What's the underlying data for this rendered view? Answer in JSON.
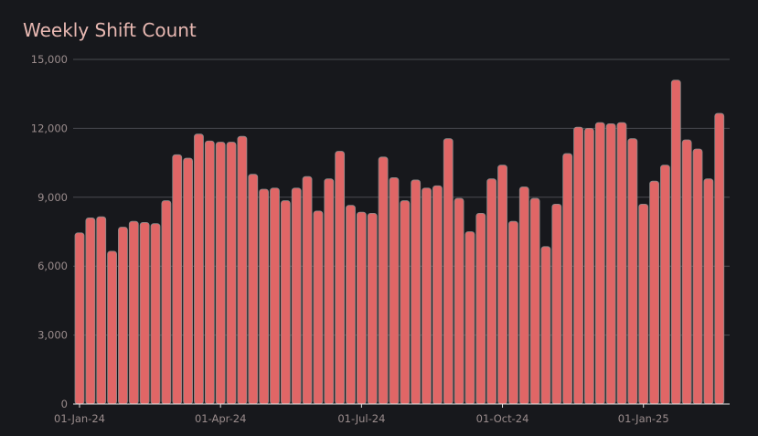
{
  "chart_data": {
    "type": "bar",
    "title": "Weekly Shift Count",
    "xlabel": "",
    "ylabel": "",
    "ylim": [
      0,
      15000
    ],
    "yticks": [
      0,
      3000,
      6000,
      9000,
      12000,
      15000
    ],
    "ytick_labels": [
      "0",
      "3,000",
      "6,000",
      "9,000",
      "12,000",
      "15,000"
    ],
    "xtick_labels": [
      {
        "category": "2024-01-01",
        "label": "01-Jan-24"
      },
      {
        "category": "2024-04-01",
        "label": "01-Apr-24"
      },
      {
        "category": "2024-07-01",
        "label": "01-Jul-24"
      },
      {
        "category": "2024-09-30",
        "label": "01-Oct-24"
      },
      {
        "category": "2024-12-30",
        "label": "01-Jan-25"
      }
    ],
    "grid": true,
    "bar_color": "#e06666",
    "bar_edge_color": "#8a8a8a",
    "start_week": "2024-01-01",
    "values": [
      7450,
      8100,
      8150,
      6650,
      7700,
      7950,
      7900,
      7850,
      8850,
      10850,
      10700,
      11750,
      11450,
      11400,
      11400,
      11650,
      10000,
      9350,
      9400,
      8850,
      9400,
      9900,
      8400,
      9800,
      11000,
      8650,
      8350,
      8300,
      10750,
      9850,
      8850,
      9750,
      9400,
      9500,
      11550,
      8950,
      7500,
      8300,
      9800,
      10400,
      7950,
      9450,
      8950,
      6850,
      8700,
      10900,
      12050,
      12000,
      12250,
      12200,
      12250,
      11550,
      8700,
      9700,
      10400,
      14100,
      11500,
      11100,
      9800,
      12650
    ]
  }
}
